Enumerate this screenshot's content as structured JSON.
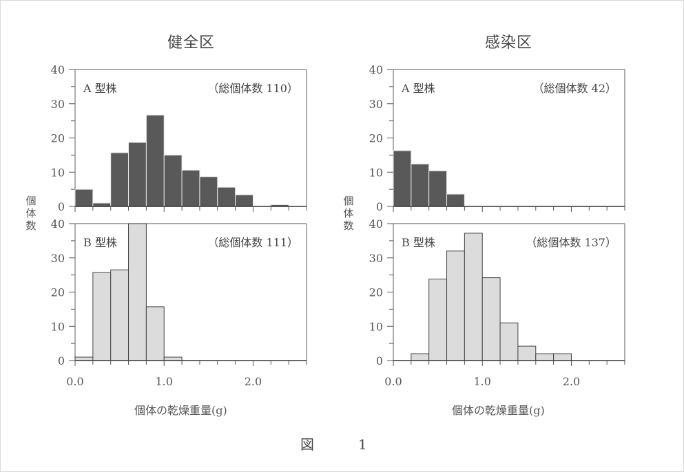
{
  "figure": {
    "caption": "図　1"
  },
  "panels": [
    {
      "title": "健全区",
      "xlabel": "個体の乾燥重量(g)",
      "ylabel": "個体数"
    },
    {
      "title": "感染区",
      "xlabel": "個体の乾燥重量(g)",
      "ylabel": "個体数"
    }
  ],
  "colors": {
    "type_a": "#595959",
    "type_b": "#dcdcdc",
    "axis": "#333333",
    "text": "#555555"
  },
  "chart_data": [
    {
      "type": "bar",
      "title": "健全区 — A型株",
      "label": "A 型株",
      "total_label": "（総個体数 110）",
      "xlabel": "個体の乾燥重量(g)",
      "ylabel": "個体数",
      "bin_edges": [
        0.0,
        0.2,
        0.4,
        0.6,
        0.8,
        1.0,
        1.2,
        1.4,
        1.6,
        1.8,
        2.0,
        2.2,
        2.4,
        2.6
      ],
      "values": [
        5,
        1,
        15.7,
        18.7,
        26.7,
        15,
        10.6,
        8.7,
        5.6,
        3.4,
        0,
        0.5,
        0
      ],
      "xlim": [
        0,
        2.6
      ],
      "ylim": [
        0,
        40
      ],
      "xticks": [
        "0.0",
        "1.0",
        "2.0"
      ],
      "yticks": [
        "0",
        "10",
        "20",
        "30",
        "40"
      ],
      "color": "#595959"
    },
    {
      "type": "bar",
      "title": "健全区 — B型株",
      "label": "B 型株",
      "total_label": "（総個体数 111）",
      "xlabel": "個体の乾燥重量(g)",
      "ylabel": "個体数",
      "bin_edges": [
        0.0,
        0.2,
        0.4,
        0.6,
        0.8,
        1.0,
        1.2,
        1.4,
        1.6,
        1.8,
        2.0,
        2.2,
        2.4,
        2.6
      ],
      "values": [
        1,
        25.7,
        26.5,
        40,
        15.7,
        1,
        0,
        0,
        0,
        0,
        0,
        0,
        0
      ],
      "xlim": [
        0,
        2.6
      ],
      "ylim": [
        0,
        40
      ],
      "xticks": [
        "0.0",
        "1.0",
        "2.0"
      ],
      "yticks": [
        "0",
        "10",
        "20",
        "30",
        "40"
      ],
      "color": "#dcdcdc"
    },
    {
      "type": "bar",
      "title": "感染区 — A型株",
      "label": "A 型株",
      "total_label": "（総個体数 42）",
      "xlabel": "個体の乾燥重量(g)",
      "ylabel": "個体数",
      "bin_edges": [
        0.0,
        0.2,
        0.4,
        0.6,
        0.8,
        1.0,
        1.2,
        1.4,
        1.6,
        1.8,
        2.0,
        2.2,
        2.4,
        2.6
      ],
      "values": [
        16.3,
        12.4,
        10.4,
        3.6,
        0,
        0,
        0,
        0,
        0,
        0,
        0,
        0,
        0
      ],
      "xlim": [
        0,
        2.6
      ],
      "ylim": [
        0,
        40
      ],
      "xticks": [
        "0.0",
        "1.0",
        "2.0"
      ],
      "yticks": [
        "0",
        "10",
        "20",
        "30",
        "40"
      ],
      "color": "#595959"
    },
    {
      "type": "bar",
      "title": "感染区 — B型株",
      "label": "B 型株",
      "total_label": "（総個体数 137）",
      "xlabel": "個体の乾燥重量(g)",
      "ylabel": "個体数",
      "bin_edges": [
        0.0,
        0.2,
        0.4,
        0.6,
        0.8,
        1.0,
        1.2,
        1.4,
        1.6,
        1.8,
        2.0,
        2.2,
        2.4,
        2.6
      ],
      "values": [
        0,
        2,
        23.8,
        32,
        37.2,
        24.2,
        11,
        4.2,
        2,
        2,
        0,
        0,
        0
      ],
      "xlim": [
        0,
        2.6
      ],
      "ylim": [
        0,
        40
      ],
      "xticks": [
        "0.0",
        "1.0",
        "2.0"
      ],
      "yticks": [
        "0",
        "10",
        "20",
        "30",
        "40"
      ],
      "color": "#dcdcdc"
    }
  ]
}
